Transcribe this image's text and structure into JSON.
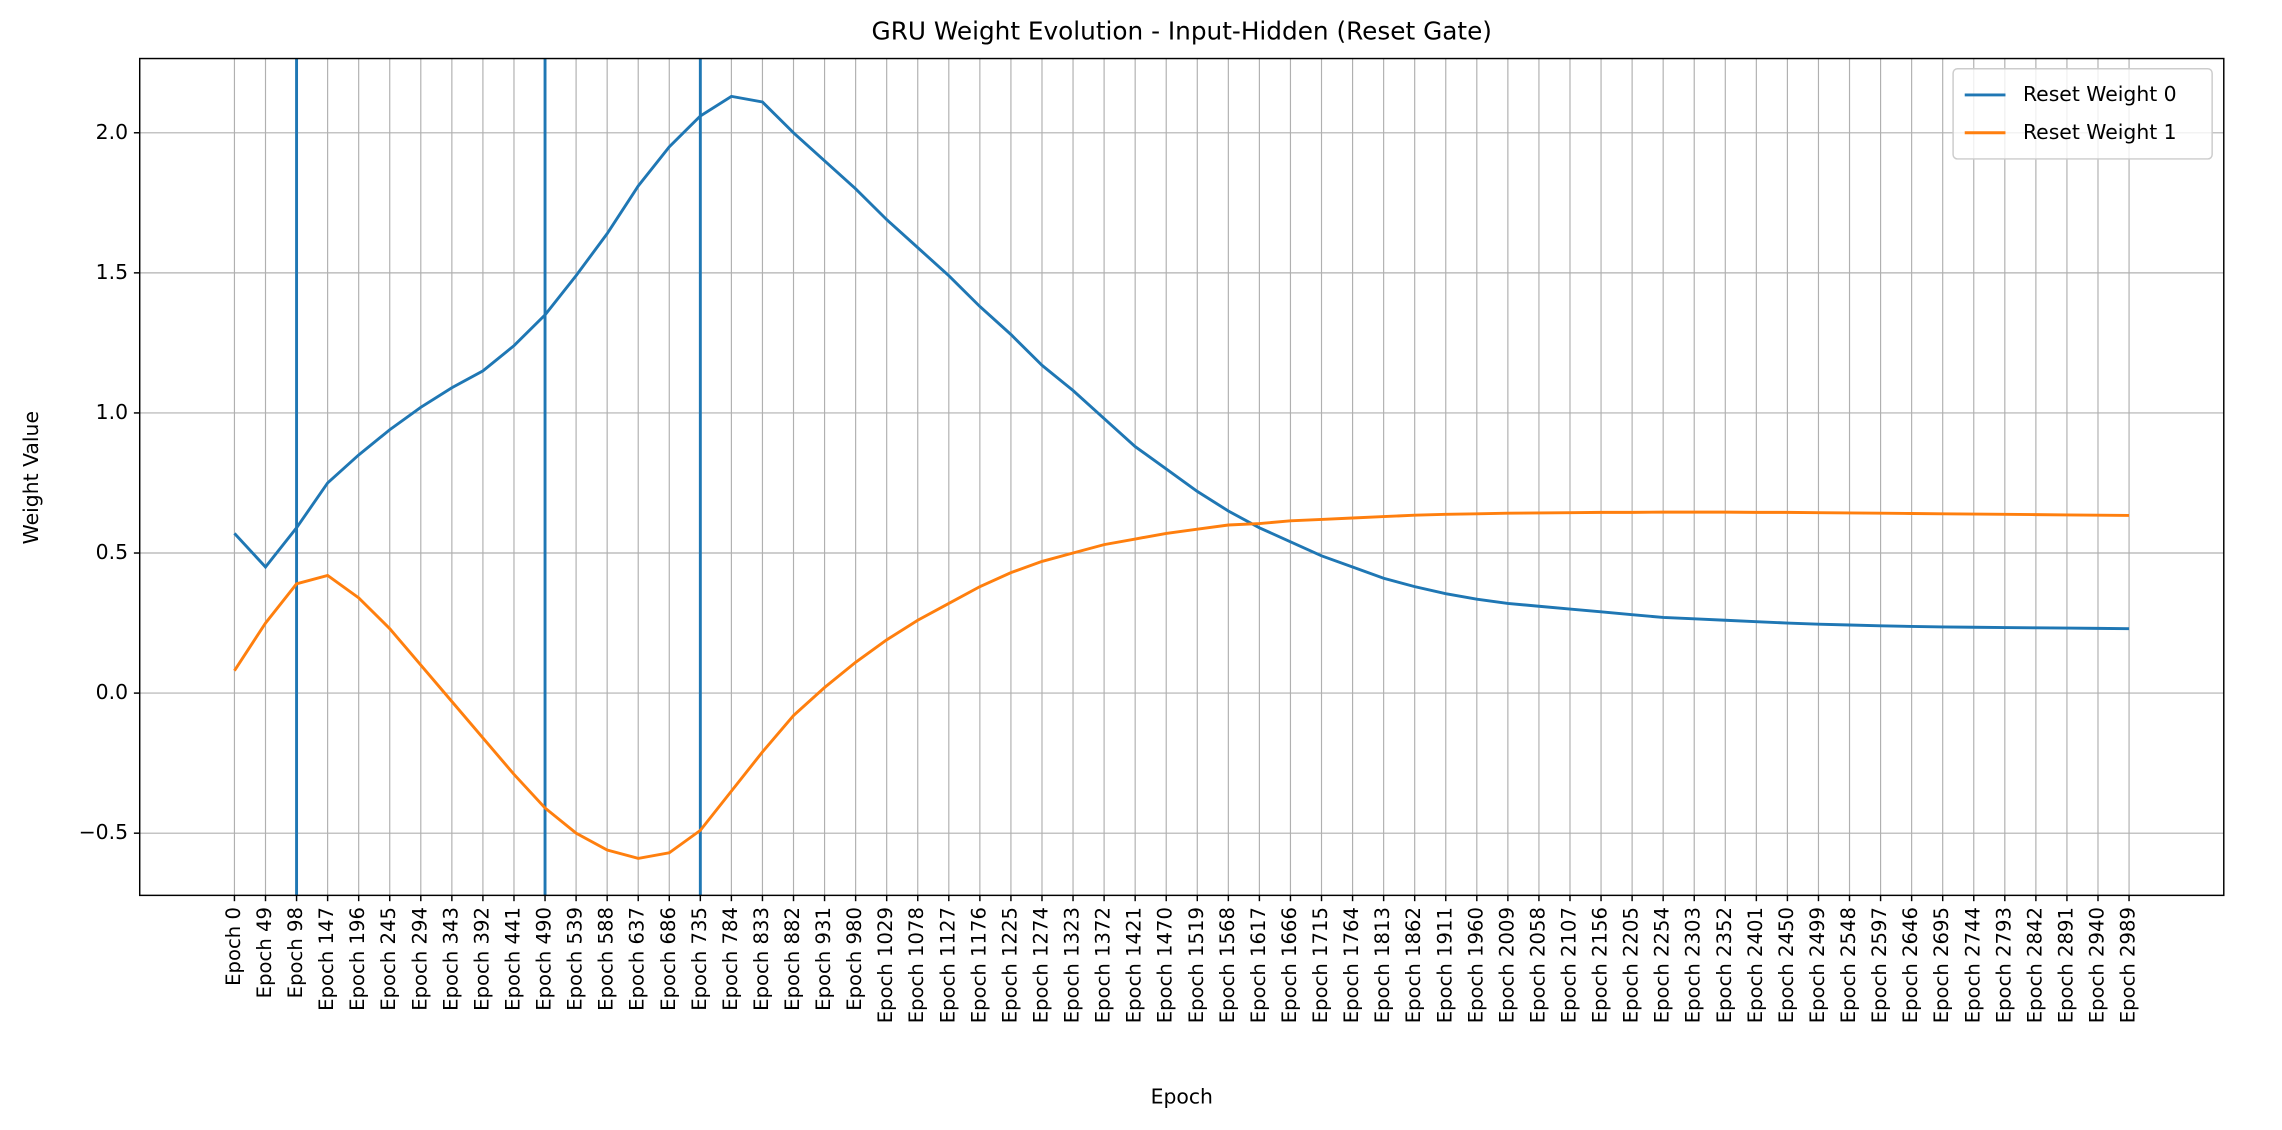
{
  "chart_data": {
    "type": "line",
    "title": "GRU Weight Evolution - Input-Hidden (Reset Gate)",
    "x_label": "Epoch",
    "y_label": "Weight Value",
    "categories": [
      "Epoch 0",
      "Epoch 49",
      "Epoch 98",
      "Epoch 147",
      "Epoch 196",
      "Epoch 245",
      "Epoch 294",
      "Epoch 343",
      "Epoch 392",
      "Epoch 441",
      "Epoch 490",
      "Epoch 539",
      "Epoch 588",
      "Epoch 637",
      "Epoch 686",
      "Epoch 735",
      "Epoch 784",
      "Epoch 833",
      "Epoch 882",
      "Epoch 931",
      "Epoch 980",
      "Epoch 1029",
      "Epoch 1078",
      "Epoch 1127",
      "Epoch 1176",
      "Epoch 1225",
      "Epoch 1274",
      "Epoch 1323",
      "Epoch 1372",
      "Epoch 1421",
      "Epoch 1470",
      "Epoch 1519",
      "Epoch 1568",
      "Epoch 1617",
      "Epoch 1666",
      "Epoch 1715",
      "Epoch 1764",
      "Epoch 1813",
      "Epoch 1862",
      "Epoch 1911",
      "Epoch 1960",
      "Epoch 2009",
      "Epoch 2058",
      "Epoch 2107",
      "Epoch 2156",
      "Epoch 2205",
      "Epoch 2254",
      "Epoch 2303",
      "Epoch 2352",
      "Epoch 2401",
      "Epoch 2450",
      "Epoch 2499",
      "Epoch 2548",
      "Epoch 2597",
      "Epoch 2646",
      "Epoch 2695",
      "Epoch 2744",
      "Epoch 2793",
      "Epoch 2842",
      "Epoch 2891",
      "Epoch 2940",
      "Epoch 2989"
    ],
    "series": [
      {
        "name": "Reset Weight 0",
        "color": "#1f77b4",
        "values": [
          0.57,
          0.45,
          0.59,
          0.75,
          0.85,
          0.94,
          1.02,
          1.09,
          1.15,
          1.24,
          1.35,
          1.49,
          1.64,
          1.81,
          1.95,
          2.06,
          2.13,
          2.11,
          2.0,
          1.9,
          1.8,
          1.69,
          1.59,
          1.49,
          1.38,
          1.28,
          1.17,
          1.08,
          0.98,
          0.88,
          0.8,
          0.72,
          0.65,
          0.59,
          0.54,
          0.49,
          0.45,
          0.41,
          0.38,
          0.355,
          0.335,
          0.32,
          0.31,
          0.3,
          0.29,
          0.28,
          0.27,
          0.265,
          0.26,
          0.255,
          0.25,
          0.246,
          0.243,
          0.24,
          0.238,
          0.236,
          0.235,
          0.234,
          0.233,
          0.232,
          0.231,
          0.23
        ]
      },
      {
        "name": "Reset Weight 1",
        "color": "#ff7f0e",
        "values": [
          0.08,
          0.25,
          0.39,
          0.42,
          0.34,
          0.23,
          0.1,
          -0.03,
          -0.16,
          -0.29,
          -0.41,
          -0.5,
          -0.56,
          -0.59,
          -0.57,
          -0.49,
          -0.35,
          -0.21,
          -0.08,
          0.02,
          0.11,
          0.19,
          0.26,
          0.32,
          0.38,
          0.43,
          0.47,
          0.5,
          0.53,
          0.55,
          0.57,
          0.585,
          0.6,
          0.605,
          0.615,
          0.62,
          0.625,
          0.63,
          0.635,
          0.638,
          0.64,
          0.642,
          0.643,
          0.644,
          0.645,
          0.645,
          0.646,
          0.646,
          0.646,
          0.645,
          0.645,
          0.644,
          0.643,
          0.642,
          0.641,
          0.64,
          0.639,
          0.638,
          0.637,
          0.636,
          0.635,
          0.634
        ]
      }
    ],
    "vlines": [
      "Epoch 98",
      "Epoch 490",
      "Epoch 735"
    ],
    "vline_color": "#1f77b4",
    "ylim": [
      -0.722,
      2.265
    ],
    "yticks": [
      {
        "value": -0.5,
        "label": "−0.5"
      },
      {
        "value": 0,
        "label": "0.0"
      },
      {
        "value": 0.5,
        "label": "0.5"
      },
      {
        "value": 1,
        "label": "1.0"
      },
      {
        "value": 1.5,
        "label": "1.5"
      },
      {
        "value": 2,
        "label": "2.0"
      }
    ],
    "grid": true,
    "legend": "upper right"
  }
}
